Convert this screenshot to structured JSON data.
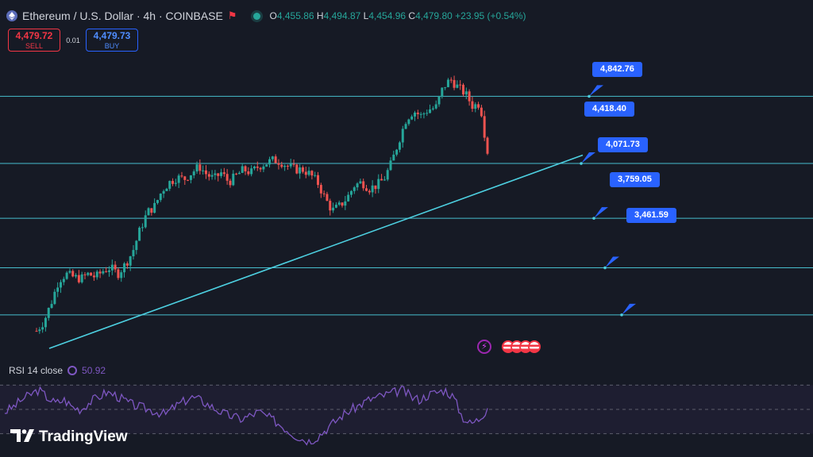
{
  "header": {
    "symbol": "Ethereum / U.S. Dollar · 4h · COINBASE",
    "o_label": "O",
    "o": "4,455.86",
    "h_label": "H",
    "h": "4,494.87",
    "l_label": "L",
    "l": "4,454.96",
    "c_label": "C",
    "c": "4,479.80",
    "change": "+23.95 (+0.54%)"
  },
  "trade": {
    "sell_price": "4,479.72",
    "sell_label": "SELL",
    "spread": "0.01",
    "buy_price": "4,479.73",
    "buy_label": "BUY"
  },
  "rsi": {
    "label": "RSI 14 close",
    "value": "50.92"
  },
  "brand": {
    "name": "TradingView"
  },
  "colors": {
    "up": "#26a69a",
    "down": "#ef5350",
    "level_line": "#4dd0e1",
    "rsi": "#7e57c2",
    "callout": "#2962ff"
  },
  "chart_data": {
    "type": "candlestick",
    "price_close_path": [
      3360,
      3420,
      3540,
      3680,
      3720,
      3700,
      3690,
      3720,
      3700,
      3740,
      3760,
      3720,
      3780,
      3860,
      4000,
      4110,
      4150,
      4250,
      4300,
      4330,
      4320,
      4360,
      4400,
      4350,
      4320,
      4360,
      4300,
      4340,
      4380,
      4360,
      4400,
      4420,
      4440,
      4430,
      4400,
      4380,
      4380,
      4350,
      4300,
      4200,
      4120,
      4150,
      4200,
      4280,
      4300,
      4260,
      4280,
      4320,
      4420,
      4560,
      4700,
      4750,
      4720,
      4760,
      4770,
      4900,
      4950,
      4900,
      4860,
      4780,
      4800,
      4479.8
    ],
    "rsi_path": [
      48,
      52,
      58,
      62,
      66,
      60,
      55,
      58,
      52,
      50,
      56,
      60,
      64,
      62,
      58,
      54,
      52,
      50,
      48,
      46,
      52,
      56,
      60,
      58,
      54,
      50,
      46,
      44,
      42,
      45,
      48,
      44,
      40,
      35,
      30,
      26,
      24,
      28,
      34,
      40,
      46,
      50,
      54,
      58,
      60,
      62,
      64,
      66,
      60,
      58,
      62,
      64,
      66,
      60,
      44,
      38,
      42,
      50.92
    ],
    "levels": [
      {
        "label": "4,842.76",
        "value": 4842.76
      },
      {
        "label": "4,418.40",
        "value": 4418.4
      },
      {
        "label": "4,071.73",
        "value": 4071.73
      },
      {
        "label": "3,759.05",
        "value": 3759.05
      },
      {
        "label": "3,461.59",
        "value": 3461.59
      }
    ],
    "trendline": {
      "from_price": 3250,
      "to_price": 4471
    },
    "price_range": [
      3120,
      5000
    ],
    "rsi_range": [
      20,
      80
    ]
  }
}
